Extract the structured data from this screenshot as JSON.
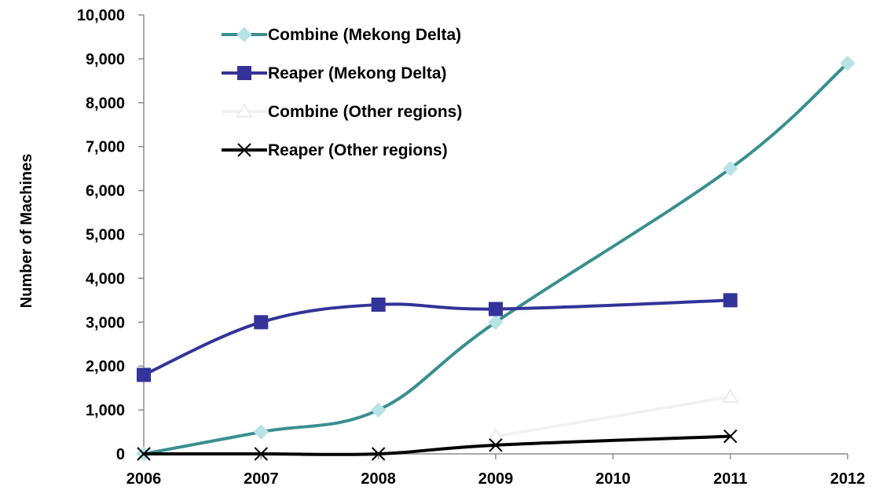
{
  "chart_data": {
    "type": "line",
    "title": "",
    "xlabel": "",
    "ylabel": "Number of Machines",
    "x": [
      "2006",
      "2007",
      "2008",
      "2009",
      "2010",
      "2011",
      "2012"
    ],
    "ylim": [
      0,
      10000
    ],
    "y_ticks": [
      "0",
      "1,000",
      "2,000",
      "3,000",
      "4,000",
      "5,000",
      "6,000",
      "7,000",
      "8,000",
      "9,000",
      "10,000"
    ],
    "grid": false,
    "legend_position": "top-left",
    "series": [
      {
        "name": "Combine (Mekong Delta)",
        "color": "#3a8f8f",
        "marker_color": "#b8e3e6",
        "marker": "diamond",
        "points": [
          {
            "x": "2006",
            "y": 0
          },
          {
            "x": "2007",
            "y": 500
          },
          {
            "x": "2008",
            "y": 1000
          },
          {
            "x": "2009",
            "y": 3000
          },
          {
            "x": "2011",
            "y": 6500
          },
          {
            "x": "2012",
            "y": 8900
          }
        ]
      },
      {
        "name": "Reaper (Mekong Delta)",
        "color": "#333399",
        "marker_color": "#333399",
        "marker": "square",
        "points": [
          {
            "x": "2006",
            "y": 1800
          },
          {
            "x": "2007",
            "y": 3000
          },
          {
            "x": "2008",
            "y": 3400
          },
          {
            "x": "2009",
            "y": 3300
          },
          {
            "x": "2011",
            "y": 3500
          }
        ]
      },
      {
        "name": "Combine (Other regions)",
        "color": "#f2f2f2",
        "marker_color": "#e6e6e6",
        "marker": "triangle",
        "points": [
          {
            "x": "2009",
            "y": 400
          },
          {
            "x": "2011",
            "y": 1300
          }
        ]
      },
      {
        "name": "Reaper (Other regions)",
        "color": "#000000",
        "marker_color": "#000000",
        "marker": "x",
        "points": [
          {
            "x": "2006",
            "y": 0
          },
          {
            "x": "2007",
            "y": 0
          },
          {
            "x": "2008",
            "y": 0
          },
          {
            "x": "2009",
            "y": 200
          },
          {
            "x": "2011",
            "y": 400
          }
        ]
      }
    ]
  }
}
